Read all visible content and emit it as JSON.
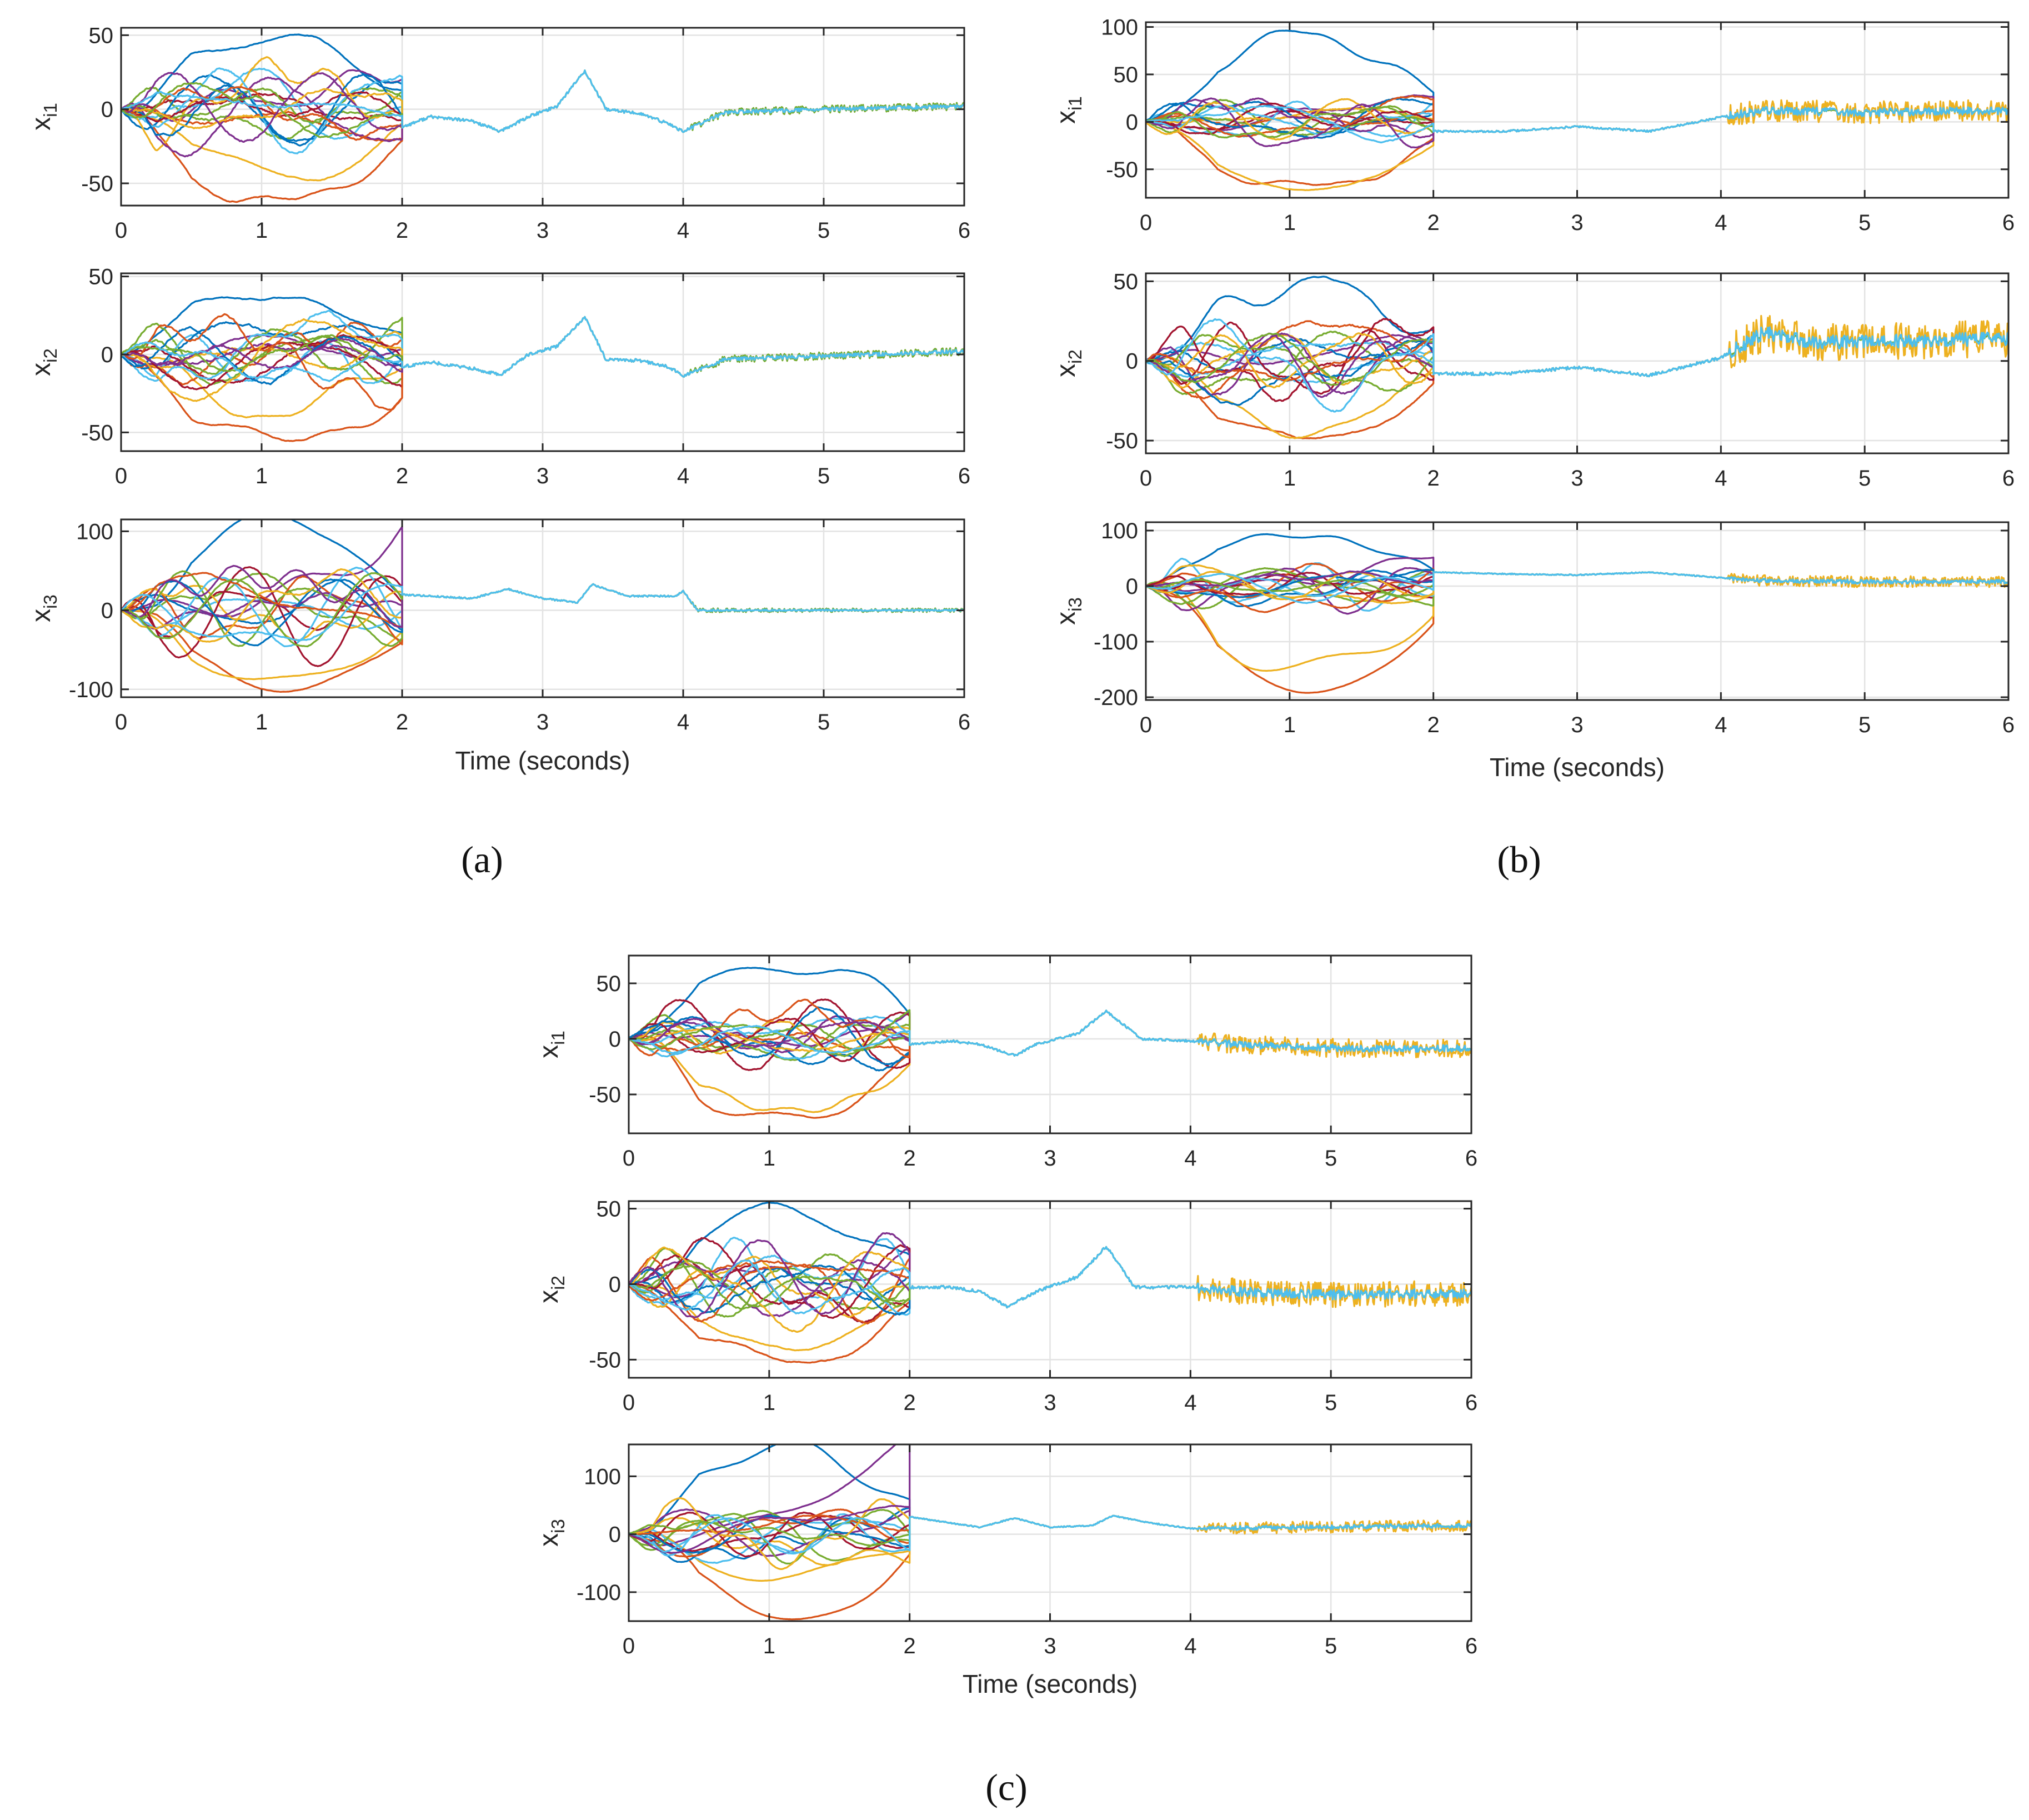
{
  "figure": {
    "panels": [
      {
        "label": "(a)"
      },
      {
        "label": "(b)"
      },
      {
        "label": "(c)"
      }
    ]
  },
  "series_colors": [
    "#0072BD",
    "#D95319",
    "#EDB120",
    "#7E2F8E",
    "#77AC30",
    "#4DBEEE",
    "#A2142F"
  ],
  "chart_data": [
    {
      "panel": "(a)",
      "type": "line",
      "xlabel": "Time (seconds)",
      "xlim": [
        0,
        6
      ],
      "xticks": [
        "0",
        "1",
        "2",
        "3",
        "4",
        "5",
        "6"
      ],
      "description": "Multi-agent states; agents diverge before t=2 then reach consensus",
      "subplots": [
        {
          "ylabel_main": "x",
          "ylabel_sub": "i1",
          "ylim": [
            -65,
            55
          ],
          "yticks": [
            -50,
            0,
            50
          ],
          "spread": 22,
          "extreme_max": 50,
          "extreme_min": -65,
          "end_a": 25,
          "end_b": -45,
          "consensus_amp": 0,
          "consensus_offset": 0,
          "consensus": {
            "t": [
              2.0,
              2.2,
              2.5,
              2.7,
              2.9,
              3.1,
              3.3,
              3.45,
              3.7,
              3.9,
              4.0,
              4.3,
              5,
              6
            ],
            "v": [
              -12,
              -5,
              -8,
              -15,
              -5,
              2,
              26,
              0,
              -3,
              -10,
              -15,
              -2,
              0,
              2
            ]
          }
        },
        {
          "ylabel_main": "x",
          "ylabel_sub": "i2",
          "ylim": [
            -62,
            52
          ],
          "yticks": [
            -50,
            0,
            50
          ],
          "spread": 18,
          "extreme_max": 40,
          "extreme_min": -58,
          "end_a": 5,
          "end_b": -35,
          "consensus_amp": 0,
          "consensus_offset": 0,
          "consensus": {
            "t": [
              2.0,
              2.2,
              2.5,
              2.7,
              2.9,
              3.1,
              3.3,
              3.45,
              3.7,
              3.9,
              4.0,
              4.3,
              5,
              6
            ],
            "v": [
              -8,
              -5,
              -9,
              -13,
              0,
              5,
              24,
              -3,
              -4,
              -8,
              -14,
              -3,
              -1,
              2
            ]
          }
        },
        {
          "ylabel_main": "x",
          "ylabel_sub": "i3",
          "ylim": [
            -110,
            115
          ],
          "yticks": [
            -100,
            0,
            100
          ],
          "spread": 40,
          "extreme_max": 105,
          "extreme_min": -103,
          "end_a": 105,
          "end_b": -90,
          "consensus_amp": 0,
          "consensus_offset": 0,
          "consensus": {
            "t": [
              2.0,
              2.5,
              2.75,
              3.0,
              3.25,
              3.35,
              3.6,
              3.95,
              4.0,
              4.1,
              6
            ],
            "v": [
              20,
              15,
              27,
              15,
              10,
              33,
              18,
              18,
              25,
              0,
              0
            ]
          }
        }
      ]
    },
    {
      "panel": "(b)",
      "type": "line",
      "xlabel": "Time (seconds)",
      "xlim": [
        0,
        6
      ],
      "xticks": [
        "0",
        "1",
        "2",
        "3",
        "4",
        "5",
        "6"
      ],
      "description": "Multi-agent states; consensus after t=2 with chattering after t=4",
      "subplots": [
        {
          "ylabel_main": "x",
          "ylabel_sub": "i1",
          "ylim": [
            -80,
            105
          ],
          "yticks": [
            -50,
            0,
            50,
            100
          ],
          "spread": 20,
          "extreme_max": 90,
          "extreme_min": -70,
          "end_a": 25,
          "end_b": -70,
          "consensus_amp": 6,
          "consensus_offset": 0,
          "consensus": {
            "t": [
              2.0,
              2.5,
              3.0,
              3.5,
              4.0,
              4.3,
              5,
              6
            ],
            "v": [
              -10,
              -10,
              -5,
              -10,
              5,
              12,
              10,
              12
            ]
          }
        },
        {
          "ylabel_main": "x",
          "ylabel_sub": "i2",
          "ylim": [
            -58,
            55
          ],
          "yticks": [
            -50,
            0,
            50
          ],
          "spread": 20,
          "extreme_max": 45,
          "extreme_min": -48,
          "end_a": 10,
          "end_b": -40,
          "consensus_amp": 6,
          "consensus_offset": 0,
          "consensus": {
            "t": [
              2.0,
              2.5,
              3.0,
              3.5,
              4.0,
              4.3,
              4.6,
              5,
              6
            ],
            "v": [
              -8,
              -8,
              -4,
              -9,
              2,
              18,
              12,
              12,
              14
            ]
          }
        },
        {
          "ylabel_main": "x",
          "ylabel_sub": "i3",
          "ylim": [
            -205,
            115
          ],
          "yticks": [
            -200,
            -100,
            0,
            100
          ],
          "spread": 35,
          "extreme_max": 100,
          "extreme_min": -190,
          "end_a": 60,
          "end_b": -150,
          "consensus_amp": 5,
          "consensus_offset": 0,
          "consensus": {
            "t": [
              2.0,
              2.5,
              3.0,
              3.5,
              4.0,
              4.2,
              5,
              6
            ],
            "v": [
              25,
              22,
              20,
              25,
              15,
              10,
              8,
              8
            ]
          }
        }
      ]
    },
    {
      "panel": "(c)",
      "type": "line",
      "xlabel": "Time (seconds)",
      "xlim": [
        0,
        6
      ],
      "xticks": [
        "0",
        "1",
        "2",
        "3",
        "4",
        "5",
        "6"
      ],
      "description": "Multi-agent states; consensus after t=2 with small chattering after t=4",
      "subplots": [
        {
          "ylabel_main": "x",
          "ylabel_sub": "i1",
          "ylim": [
            -85,
            75
          ],
          "yticks": [
            -50,
            0,
            50
          ],
          "spread": 22,
          "extreme_max": 67,
          "extreme_min": -72,
          "end_a": 20,
          "end_b": -72,
          "consensus_amp": 4,
          "consensus_offset": 0,
          "consensus": {
            "t": [
              2.0,
              2.3,
              2.5,
              2.75,
              2.9,
              3.2,
              3.4,
              3.65,
              4.0,
              4.5,
              5,
              5.5,
              6
            ],
            "v": [
              -5,
              -2,
              -5,
              -15,
              -5,
              5,
              25,
              0,
              -2,
              -6,
              -8,
              -9,
              -8
            ]
          }
        },
        {
          "ylabel_main": "x",
          "ylabel_sub": "i2",
          "ylim": [
            -62,
            55
          ],
          "yticks": [
            -50,
            0,
            50
          ],
          "spread": 20,
          "extreme_max": 48,
          "extreme_min": -50,
          "end_a": 10,
          "end_b": -40,
          "consensus_amp": 4,
          "consensus_offset": 0,
          "consensus": {
            "t": [
              2.0,
              2.3,
              2.5,
              2.7,
              2.9,
              3.2,
              3.4,
              3.6,
              4.0,
              4.5,
              5,
              6
            ],
            "v": [
              -2,
              -2,
              -5,
              -15,
              -5,
              5,
              25,
              -2,
              -2,
              -6,
              -7,
              -6
            ]
          }
        },
        {
          "ylabel_main": "x",
          "ylabel_sub": "i3",
          "ylim": [
            -150,
            155
          ],
          "yticks": [
            -100,
            0,
            100
          ],
          "spread": 45,
          "extreme_max": 150,
          "extreme_min": -140,
          "end_a": 150,
          "end_b": -70,
          "consensus_amp": 5,
          "consensus_offset": 0,
          "consensus": {
            "t": [
              2.0,
              2.5,
              2.75,
              3.0,
              3.3,
              3.45,
              3.7,
              4.0,
              6
            ],
            "v": [
              30,
              12,
              28,
              12,
              15,
              32,
              20,
              10,
              15
            ]
          }
        }
      ]
    }
  ]
}
